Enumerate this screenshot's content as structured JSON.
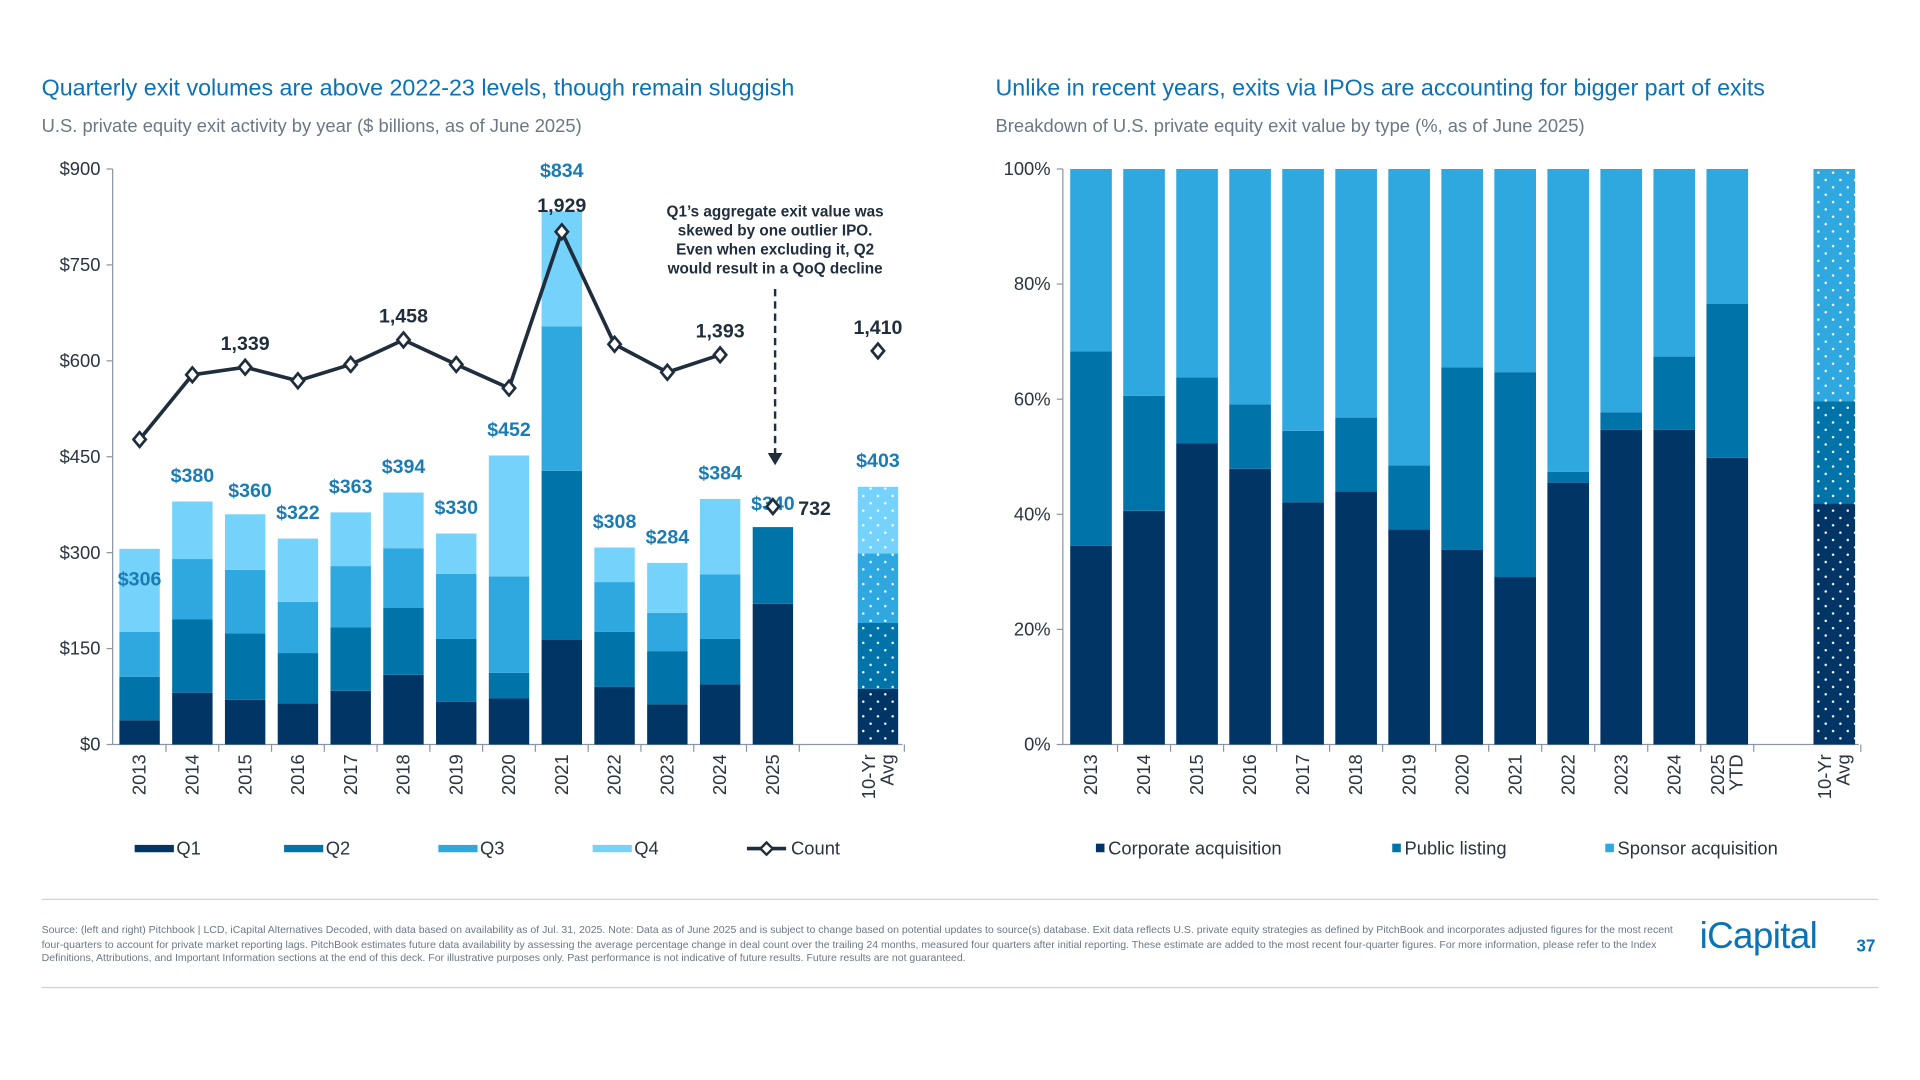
{
  "left": {
    "title": "Quarterly exit volumes are above 2022-23 levels, though remain sluggish",
    "subtitle": "U.S. private equity exit activity by year ($ billions, as of June 2025)",
    "annotation": [
      "Q1’s aggregate exit value was",
      "skewed by one outlier IPO.",
      "Even when excluding it, Q2",
      "would result in a QoQ decline"
    ]
  },
  "right": {
    "title": "Unlike in recent years, exits via IPOs are accounting for bigger part of exits",
    "subtitle": "Breakdown of U.S. private equity exit value by type (%, as of June 2025)"
  },
  "footer": {
    "text": "Source: (left and right) Pitchbook | LCD, iCapital Alternatives Decoded, with data based on availability as of Jul. 31, 2025. Note: Data as of June 2025 and is subject to change based on potential updates to source(s) database. Exit data reflects U.S. private equity strategies as defined by PitchBook and incorporates adjusted figures for the most recent four-quarters to account for private market reporting lags. PitchBook estimates future data availability by assessing the average percentage change in deal count over the trailing 24 months, measured four quarters after initial reporting. These estimate are added to the most recent four-quarter figures. For more information, please refer to the Index Definitions, Attributions, and Important Information sections at the end of this deck. For illustrative purposes only. Past performance is not indicative of future results. Future results are not guaranteed.",
    "logo": "iCapital",
    "page": "37"
  },
  "chart_data": [
    {
      "type": "bar",
      "stacked": true,
      "categories": [
        "2013",
        "2014",
        "2015",
        "2016",
        "2017",
        "2018",
        "2019",
        "2020",
        "2021",
        "2022",
        "2023",
        "2024",
        "2025",
        "10-Yr Avg"
      ],
      "ylim": [
        0,
        900
      ],
      "yticks": [
        "$0",
        "$150",
        "$300",
        "$450",
        "$600",
        "$750",
        "$900"
      ],
      "ytick_values": [
        0,
        150,
        300,
        450,
        600,
        750,
        900
      ],
      "series": [
        {
          "name": "Q1",
          "color": "#003566",
          "values": [
            38,
            81,
            70,
            64,
            84,
            109,
            67,
            72,
            164,
            90,
            63,
            94,
            220,
            87
          ]
        },
        {
          "name": "Q2",
          "color": "#0073a8",
          "values": [
            68,
            115,
            104,
            79,
            99,
            105,
            98,
            40,
            264,
            86,
            83,
            71,
            120,
            103
          ]
        },
        {
          "name": "Q3",
          "color": "#2fa8e0",
          "values": [
            70,
            94,
            99,
            80,
            96,
            93,
            102,
            151,
            226,
            78,
            60,
            101,
            null,
            109
          ]
        },
        {
          "name": "Q4",
          "color": "#75d3fb",
          "values": [
            130,
            90,
            87,
            99,
            84,
            87,
            63,
            189,
            180,
            54,
            78,
            118,
            null,
            104
          ]
        }
      ],
      "totals": [
        "$306",
        "$380",
        "$360",
        "$322",
        "$363",
        "$394",
        "$330",
        "$452",
        "$834",
        "$308",
        "$284",
        "$384",
        "$340",
        "$403"
      ],
      "line_series": {
        "name": "Count",
        "type": "line",
        "color": "#1f2d3d",
        "values": [
          1024,
          1306,
          1339,
          1280,
          1351,
          1458,
          1351,
          1248,
          1929,
          1439,
          1317,
          1393,
          732,
          1410
        ],
        "labels": {
          "2015": "1,339",
          "2018": "1,458",
          "2021": "1,929",
          "2024": "1,393",
          "2025": "732",
          "10-Yr Avg": "1,410"
        }
      },
      "legend_position": "bottom",
      "grid": false
    },
    {
      "type": "bar",
      "stacked": true,
      "percent": true,
      "categories": [
        "2013",
        "2014",
        "2015",
        "2016",
        "2017",
        "2018",
        "2019",
        "2020",
        "2021",
        "2022",
        "2023",
        "2024",
        "2025 YTD",
        "10-Yr Avg"
      ],
      "ylim": [
        0,
        100
      ],
      "yticks": [
        "0%",
        "20%",
        "40%",
        "60%",
        "80%",
        "100%"
      ],
      "ytick_values": [
        0,
        20,
        40,
        60,
        80,
        100
      ],
      "series": [
        {
          "name": "Corporate acquisition",
          "color": "#003566",
          "values": [
            34.5,
            40.6,
            52.3,
            47.9,
            42.1,
            44.0,
            37.4,
            33.8,
            29.1,
            45.5,
            54.7,
            54.7,
            49.8,
            41.9
          ]
        },
        {
          "name": "Public listing",
          "color": "#0073a8",
          "values": [
            33.8,
            20.0,
            11.5,
            11.2,
            12.4,
            12.8,
            11.1,
            31.7,
            35.6,
            1.9,
            3.0,
            12.7,
            26.8,
            17.7
          ]
        },
        {
          "name": "Sponsor acquisition",
          "color": "#2fa8e0",
          "values": [
            31.7,
            39.4,
            36.2,
            40.9,
            45.5,
            43.2,
            51.5,
            34.5,
            35.3,
            52.6,
            42.3,
            32.6,
            23.4,
            40.4
          ]
        }
      ],
      "legend_position": "bottom",
      "grid": false
    }
  ]
}
